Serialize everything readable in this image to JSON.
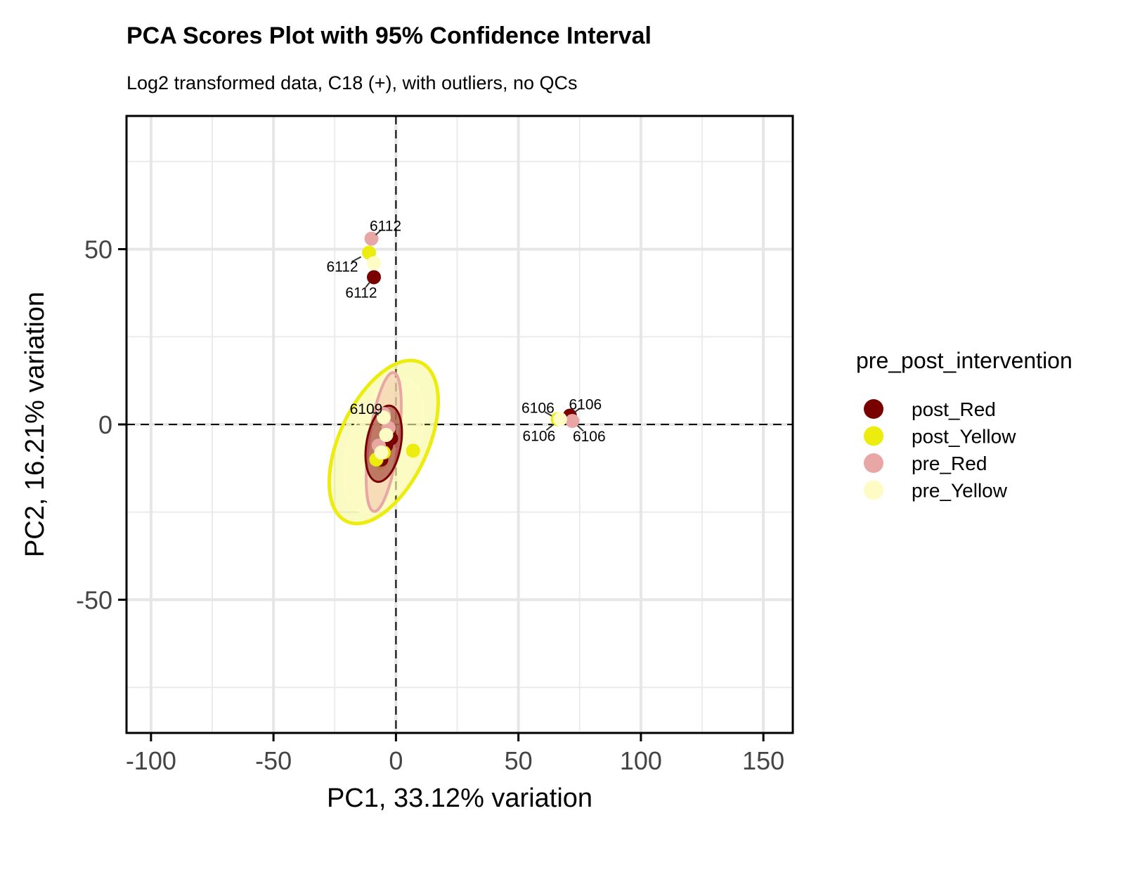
{
  "chart_data": {
    "type": "scatter",
    "title": "PCA Scores Plot with 95% Confidence Interval",
    "subtitle": "Log2 transformed data, C18 (+), with outliers, no QCs",
    "xlabel": "PC1, 33.12% variation",
    "ylabel": "PC2, 16.21% variation",
    "xlim": [
      -110,
      162
    ],
    "ylim": [
      -88,
      88
    ],
    "x_ticks": [
      -100,
      -50,
      0,
      50,
      100,
      150
    ],
    "y_ticks": [
      -50,
      0,
      50
    ],
    "x_tick_labels": [
      "-100",
      "-50",
      "0",
      "50",
      "100",
      "150"
    ],
    "y_tick_labels": [
      "-50",
      "0",
      "50"
    ],
    "grid": true,
    "reference_lines": {
      "x": 0,
      "y": 0,
      "style": "dashed"
    },
    "legend": {
      "title": "pre_post_intervention",
      "position": "right",
      "entries": [
        "post_Red",
        "post_Yellow",
        "pre_Red",
        "pre_Yellow"
      ]
    },
    "series": [
      {
        "name": "post_Red",
        "color": "#7a0000",
        "points": [
          {
            "x": -9,
            "y": 42,
            "label": "6112"
          },
          {
            "x": 71,
            "y": 2.5,
            "label": "6106"
          },
          {
            "x": -4,
            "y": -6
          },
          {
            "x": -2,
            "y": -4
          },
          {
            "x": -6,
            "y": -10
          },
          {
            "x": -3,
            "y": -2
          }
        ],
        "ellipse": {
          "cx": -5,
          "cy": -5.5,
          "rx": 7,
          "ry": 11,
          "angle": 10
        }
      },
      {
        "name": "post_Yellow",
        "color": "#ecec0e",
        "points": [
          {
            "x": -11,
            "y": 49,
            "label": "6112"
          },
          {
            "x": 66,
            "y": 1.5,
            "label": "6106"
          },
          {
            "x": 7,
            "y": -7.5
          },
          {
            "x": -8,
            "y": -10
          },
          {
            "x": -5,
            "y": -8
          }
        ],
        "ellipse": {
          "cx": -5,
          "cy": -5,
          "rx": 18,
          "ry": 25,
          "angle": 25
        }
      },
      {
        "name": "pre_Red",
        "color": "#e8a7a4",
        "points": [
          {
            "x": -10,
            "y": 53,
            "label": "6112"
          },
          {
            "x": 72,
            "y": 1,
            "label": "6106"
          },
          {
            "x": -5,
            "y": 3
          },
          {
            "x": -3,
            "y": -1
          },
          {
            "x": -7,
            "y": -6
          }
        ],
        "ellipse": {
          "cx": -5,
          "cy": -5,
          "rx": 6,
          "ry": 20,
          "angle": 8
        }
      },
      {
        "name": "pre_Yellow",
        "color": "#fffbc4",
        "points": [
          {
            "x": -9,
            "y": 46
          },
          {
            "x": 67,
            "y": 1.5,
            "label": "6106"
          },
          {
            "x": -5,
            "y": 2,
            "label": "6109"
          },
          {
            "x": -4,
            "y": -3
          },
          {
            "x": -6,
            "y": -8
          }
        ],
        "ellipse": {
          "cx": -5,
          "cy": -6,
          "rx": 14,
          "ry": 20,
          "angle": 20
        }
      }
    ]
  }
}
